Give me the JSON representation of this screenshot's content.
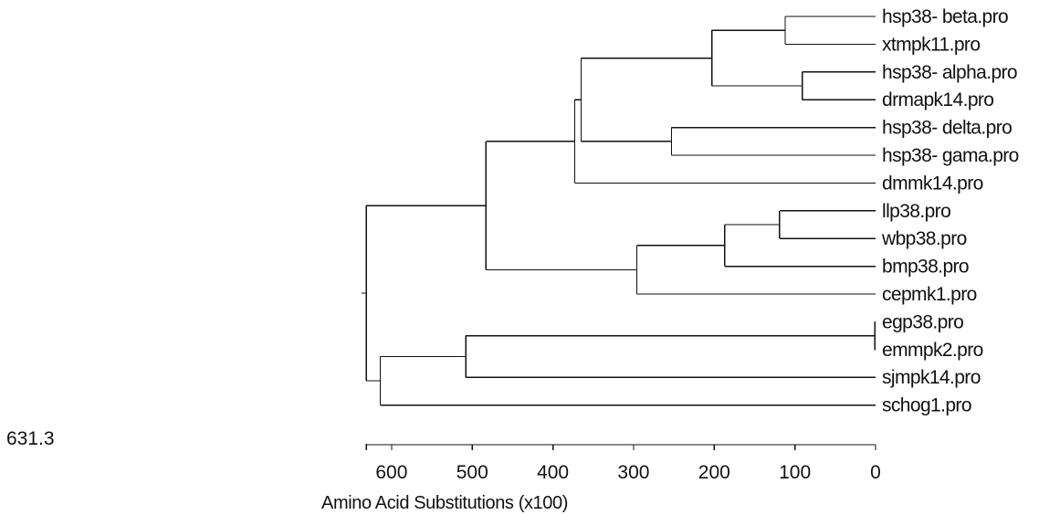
{
  "dendrogram": {
    "axis_title": "Amino Acid Substitutions (x100)",
    "scale_max_label": "631.3",
    "scale_max": 631.3,
    "reversed": true,
    "ticks": [
      {
        "value": 600,
        "label": "600"
      },
      {
        "value": 500,
        "label": "500"
      },
      {
        "value": 400,
        "label": "400"
      },
      {
        "value": 300,
        "label": "300"
      },
      {
        "value": 200,
        "label": "200"
      },
      {
        "value": 100,
        "label": "100"
      },
      {
        "value": 0,
        "label": "0"
      }
    ],
    "leaves": [
      {
        "id": "L1",
        "label": "hsp38- beta.pro"
      },
      {
        "id": "L2",
        "label": "xtmpk11.pro"
      },
      {
        "id": "L3",
        "label": "hsp38- alpha.pro"
      },
      {
        "id": "L4",
        "label": "drmapk14.pro"
      },
      {
        "id": "L5",
        "label": "hsp38- delta.pro"
      },
      {
        "id": "L6",
        "label": "hsp38- gama.pro"
      },
      {
        "id": "L7",
        "label": "dmmk14.pro"
      },
      {
        "id": "L8",
        "label": "llp38.pro"
      },
      {
        "id": "L9",
        "label": "wbp38.pro"
      },
      {
        "id": "L10",
        "label": "bmp38.pro"
      },
      {
        "id": "L11",
        "label": "cepmk1.pro"
      },
      {
        "id": "L12",
        "label": "egp38.pro"
      },
      {
        "id": "L13",
        "label": "emmpk2.pro"
      },
      {
        "id": "L14",
        "label": "sjmpk14.pro"
      },
      {
        "id": "L15",
        "label": "schog1.pro"
      }
    ],
    "nodes": [
      {
        "id": "N1",
        "height": 112,
        "children": [
          "L1",
          "L2"
        ]
      },
      {
        "id": "N2",
        "height": 91,
        "children": [
          "L3",
          "L4"
        ]
      },
      {
        "id": "N3",
        "height": 203,
        "children": [
          "N1",
          "N2"
        ]
      },
      {
        "id": "N4",
        "height": 253,
        "children": [
          "L5",
          "L6"
        ]
      },
      {
        "id": "N5",
        "height": 365,
        "children": [
          "N3",
          "N4"
        ]
      },
      {
        "id": "N6",
        "height": 373,
        "children": [
          "N5",
          "L7"
        ]
      },
      {
        "id": "N7",
        "height": 119,
        "children": [
          "L8",
          "L9"
        ]
      },
      {
        "id": "N8",
        "height": 187,
        "children": [
          "N7",
          "L10"
        ]
      },
      {
        "id": "N9",
        "height": 296,
        "children": [
          "N8",
          "L11"
        ]
      },
      {
        "id": "N10",
        "height": 483,
        "children": [
          "N6",
          "N9"
        ]
      },
      {
        "id": "N11",
        "height": 1,
        "children": [
          "L12",
          "L13"
        ]
      },
      {
        "id": "N12",
        "height": 508,
        "children": [
          "N11",
          "L14"
        ]
      },
      {
        "id": "N13",
        "height": 614,
        "children": [
          "N12",
          "L15"
        ]
      },
      {
        "id": "ROOT",
        "height": 631.3,
        "children": [
          "N10",
          "N13"
        ]
      }
    ]
  }
}
